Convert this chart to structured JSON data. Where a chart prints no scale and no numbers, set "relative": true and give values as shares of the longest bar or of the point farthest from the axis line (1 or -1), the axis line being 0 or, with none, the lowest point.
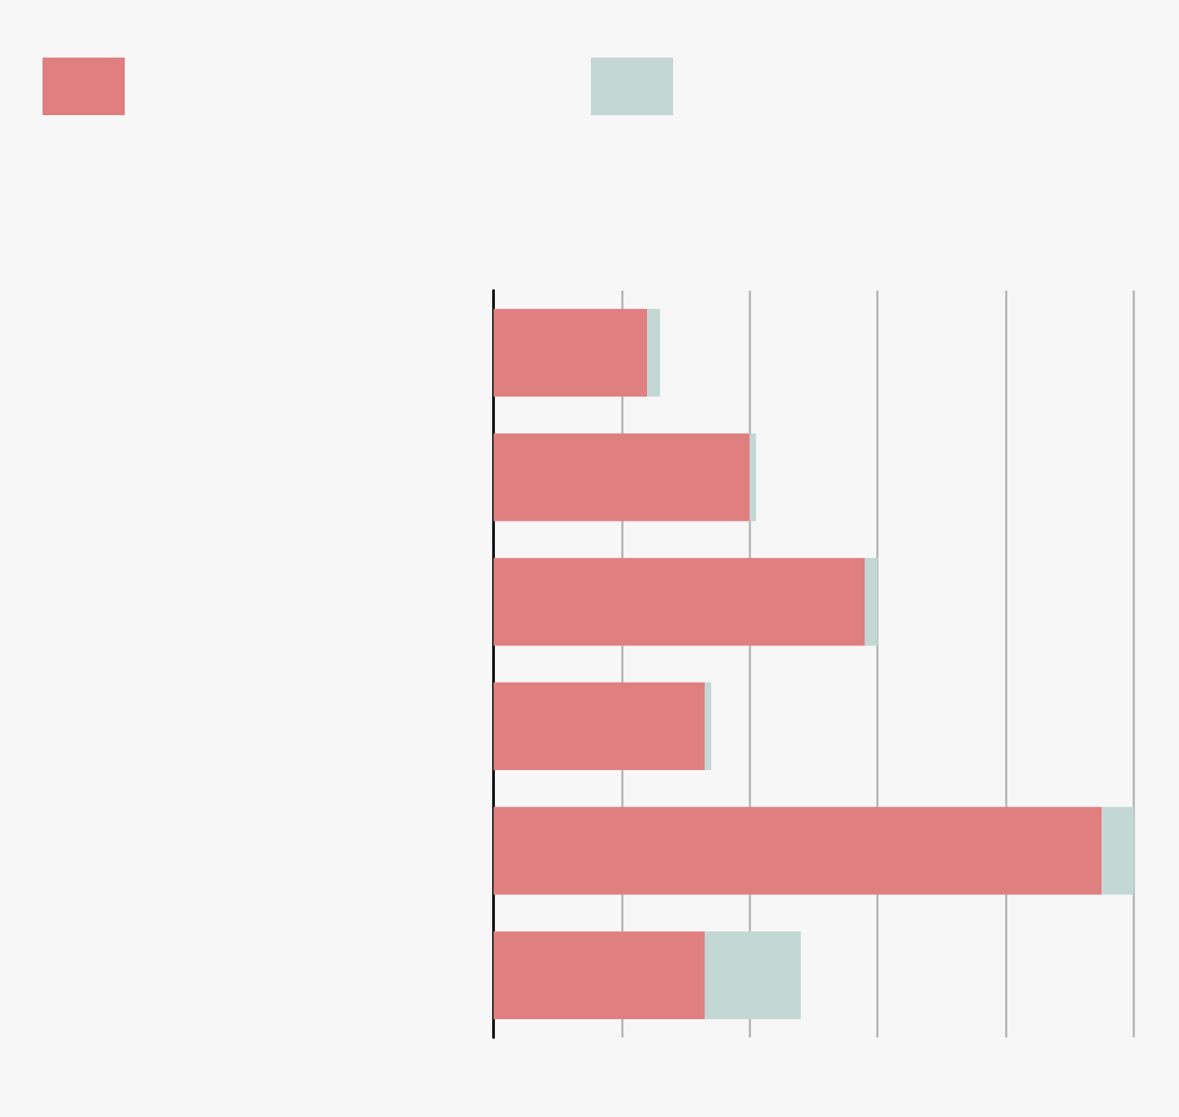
{
  "chart_data": {
    "type": "bar",
    "orientation": "horizontal",
    "stacked": true,
    "relative": true,
    "categories": [
      null,
      null,
      null,
      null,
      null,
      null
    ],
    "series": [
      {
        "color": "#e07f7f",
        "values": [
          0.24,
          0.4,
          0.58,
          0.33,
          0.95,
          0.33
        ]
      },
      {
        "color": "#c3d8d5",
        "values": [
          0.02,
          0.01,
          0.02,
          0.01,
          0.05,
          0.15
        ]
      }
    ],
    "grid": "x"
  }
}
